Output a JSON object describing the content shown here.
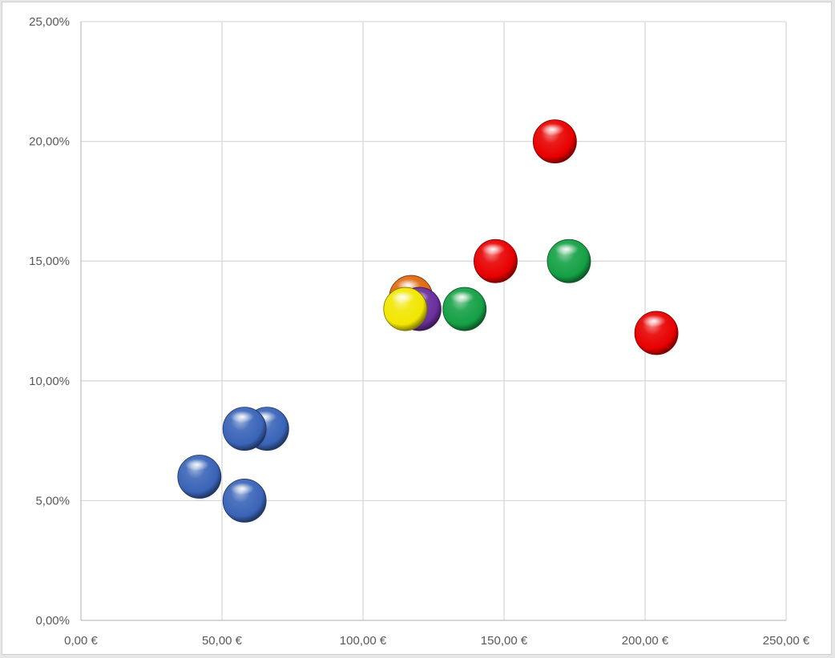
{
  "chart_data": {
    "type": "scatter",
    "title": "",
    "xlabel": "",
    "ylabel": "",
    "xlim": [
      0,
      250
    ],
    "ylim": [
      0,
      0.25
    ],
    "x_ticks": [
      0,
      50,
      100,
      150,
      200,
      250
    ],
    "x_tick_labels": [
      "0,00 €",
      "50,00 €",
      "100,00 €",
      "150,00 €",
      "200,00 €",
      "250,00 €"
    ],
    "y_ticks": [
      0,
      0.05,
      0.1,
      0.15,
      0.2,
      0.25
    ],
    "y_tick_labels": [
      "0,00%",
      "5,00%",
      "10,00%",
      "15,00%",
      "20,00%",
      "25,00%"
    ],
    "grid": true,
    "legend": "none",
    "series": [
      {
        "color": "#3a64b8",
        "points": [
          {
            "x": 42,
            "y": 0.06
          },
          {
            "x": 58,
            "y": 0.05
          },
          {
            "x": 66,
            "y": 0.08
          },
          {
            "x": 58,
            "y": 0.08
          }
        ]
      },
      {
        "color": "#e06a10",
        "points": [
          {
            "x": 117,
            "y": 0.135
          }
        ]
      },
      {
        "color": "#6a2f9c",
        "points": [
          {
            "x": 120,
            "y": 0.13
          }
        ]
      },
      {
        "color": "#f2e600",
        "points": [
          {
            "x": 115,
            "y": 0.13
          }
        ]
      },
      {
        "color": "#15a045",
        "points": [
          {
            "x": 136,
            "y": 0.13
          },
          {
            "x": 173,
            "y": 0.15
          }
        ]
      },
      {
        "color": "#e80000",
        "points": [
          {
            "x": 147,
            "y": 0.15
          },
          {
            "x": 168,
            "y": 0.2
          },
          {
            "x": 204,
            "y": 0.12
          }
        ]
      }
    ]
  }
}
